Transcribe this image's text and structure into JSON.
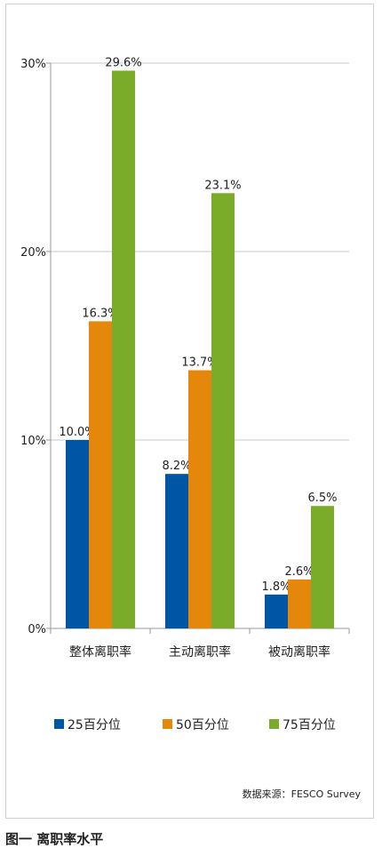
{
  "chart_data": {
    "type": "bar",
    "categories": [
      "整体离职率",
      "主动离职率",
      "被动离职率"
    ],
    "series": [
      {
        "name": "25百分位",
        "color": "#0055a5",
        "values": [
          10.0,
          8.2,
          1.8
        ],
        "labels": [
          "10.0%",
          "8.2%",
          "1.8%"
        ]
      },
      {
        "name": "50百分位",
        "color": "#e5870a",
        "values": [
          16.3,
          13.7,
          2.6
        ],
        "labels": [
          "16.3%",
          "13.7%",
          "2.6%"
        ]
      },
      {
        "name": "75百分位",
        "color": "#7aac2a",
        "values": [
          29.6,
          23.1,
          6.5
        ],
        "labels": [
          "29.6%",
          "23.1%",
          "6.5%"
        ]
      }
    ],
    "y_ticks": [
      {
        "value": 0,
        "label": "0%"
      },
      {
        "value": 10,
        "label": "10%"
      },
      {
        "value": 20,
        "label": "20%"
      },
      {
        "value": 30,
        "label": "30%"
      }
    ],
    "ylim": [
      0,
      30
    ],
    "grid": true,
    "legend_position": "bottom",
    "source": "数据来源：FESCO Survey"
  },
  "caption": "图一  离职率水平"
}
